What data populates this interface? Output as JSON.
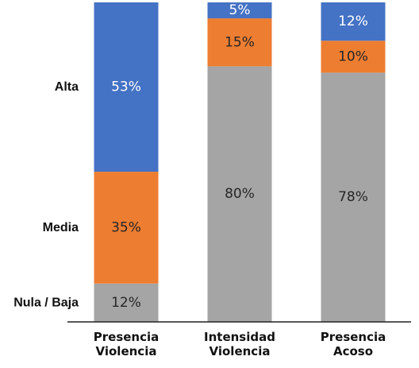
{
  "chart_data": {
    "type": "bar",
    "stacked": true,
    "categories": [
      [
        "Presencia",
        "Violencia"
      ],
      [
        "Intensidad",
        "Violencia"
      ],
      [
        "Presencia",
        "Acoso"
      ]
    ],
    "series": [
      {
        "name": "Nula / Baja",
        "values": [
          12,
          80,
          78
        ],
        "color": "#a5a5a5",
        "label_color": "#262626"
      },
      {
        "name": "Media",
        "values": [
          35,
          15,
          10
        ],
        "color": "#ed7d31",
        "label_color": "#262626"
      },
      {
        "name": "Alta",
        "values": [
          53,
          5,
          12
        ],
        "color": "#4472c4",
        "label_color": "#ffffff"
      }
    ],
    "value_suffix": "%",
    "ylim": [
      0,
      100
    ],
    "grid": false,
    "legend": "left, level labels beside first bar",
    "title": "",
    "xlabel": "",
    "ylabel": ""
  }
}
